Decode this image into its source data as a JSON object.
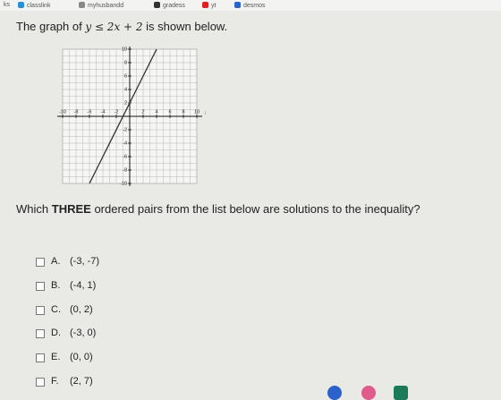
{
  "bookmarks": [
    "ks",
    "classlink",
    "myhusbandd",
    "gradess",
    "yt",
    "desmos"
  ],
  "question": {
    "before": "The graph of",
    "inequality": "y ≤ 2x + 2",
    "after": "is shown below."
  },
  "graph": {
    "xlim": [
      -10,
      10
    ],
    "ylim": [
      -10,
      10
    ],
    "xticks": [
      -10,
      -8,
      -6,
      -4,
      -2,
      2,
      4,
      6,
      8,
      10
    ],
    "yticks": [
      10,
      8,
      6,
      4,
      2,
      -2,
      -4,
      -6,
      -8,
      -10
    ],
    "axis_label_x": "x",
    "line": {
      "x": [
        -6,
        4
      ],
      "y": [
        -10,
        10
      ]
    }
  },
  "prompt": {
    "before": "Which",
    "emphasis": "THREE",
    "after": "ordered pairs from the list below are solutions to the inequality?"
  },
  "options": [
    {
      "letter": "A.",
      "pair": "(-3, -7)"
    },
    {
      "letter": "B.",
      "pair": "(-4, 1)"
    },
    {
      "letter": "C.",
      "pair": "(0, 2)"
    },
    {
      "letter": "D.",
      "pair": "(-3, 0)"
    },
    {
      "letter": "E.",
      "pair": "(0, 0)"
    },
    {
      "letter": "F.",
      "pair": "(2, 7)"
    }
  ]
}
